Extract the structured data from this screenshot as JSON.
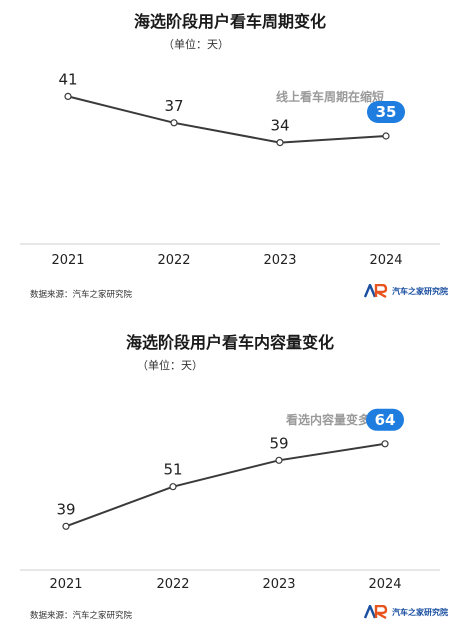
{
  "chart_data": [
    {
      "type": "line",
      "title": "海选阶段用户看车周期变化",
      "unit_note": "（单位：天）",
      "annotation": "线上看车周期在缩短",
      "categories": [
        "2021",
        "2022",
        "2023",
        "2024"
      ],
      "series": [
        {
          "values": [
            41,
            37,
            34,
            35
          ]
        }
      ],
      "ylim": [
        20,
        45
      ],
      "highlight_index": 3,
      "colors": {
        "line": "#3a3a3a",
        "highlight": "#1f7de0"
      },
      "source": "数据来源：汽车之家研究院",
      "logo_text": "汽车之家研究院"
    },
    {
      "type": "line",
      "title": "海选阶段用户看车内容量变化",
      "unit_note": "（单位：天）",
      "annotation": "看选内容量变多",
      "categories": [
        "2021",
        "2022",
        "2023",
        "2024"
      ],
      "series": [
        {
          "values": [
            39,
            51,
            59,
            64
          ]
        }
      ],
      "ylim": [
        30,
        80
      ],
      "highlight_index": 3,
      "colors": {
        "line": "#3a3a3a",
        "highlight": "#1f7de0"
      },
      "source": "数据来源：汽车之家研究院",
      "logo_text": "汽车之家研究院"
    }
  ]
}
